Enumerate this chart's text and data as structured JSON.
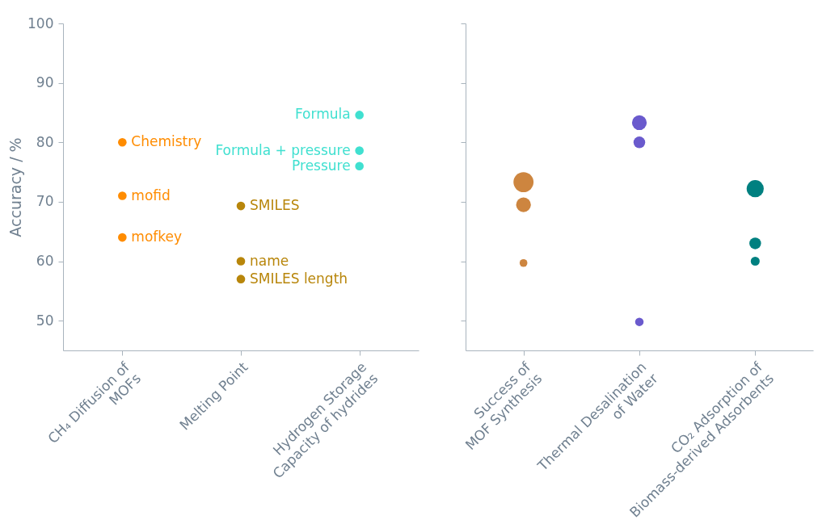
{
  "chart_data": [
    {
      "type": "scatter",
      "ylabel": "Accuracy / %",
      "categories": [
        "CH₄ Diffusion of\nMOFs",
        "Melting Point",
        "Hydrogen Storage\nCapacity of hydrides"
      ],
      "ylim": [
        45,
        100
      ],
      "yticks": [
        50,
        60,
        70,
        80,
        90,
        100
      ],
      "marker": "circle",
      "series": [
        {
          "name": "Chemistry",
          "color": "#ff8c00",
          "x": [
            "CH₄ Diffusion of\nMOFs"
          ],
          "values": [
            80
          ]
        },
        {
          "name": "mofid",
          "color": "#ff8c00",
          "x": [
            "CH₄ Diffusion of\nMOFs"
          ],
          "values": [
            71
          ]
        },
        {
          "name": "mofkey",
          "color": "#ff8c00",
          "x": [
            "CH₄ Diffusion of\nMOFs"
          ],
          "values": [
            64
          ]
        },
        {
          "name": "SMILES",
          "color": "#b8860b",
          "x": [
            "Melting Point"
          ],
          "values": [
            69.3
          ]
        },
        {
          "name": "name",
          "color": "#b8860b",
          "x": [
            "Melting Point"
          ],
          "values": [
            60
          ]
        },
        {
          "name": "SMILES length",
          "color": "#b8860b",
          "x": [
            "Melting Point"
          ],
          "values": [
            57
          ]
        },
        {
          "name": "Formula",
          "color": "#40e0d0",
          "x": [
            "Hydrogen Storage\nCapacity of hydrides"
          ],
          "values": [
            84.6
          ]
        },
        {
          "name": "Formula + pressure",
          "color": "#40e0d0",
          "x": [
            "Hydrogen Storage\nCapacity of hydrides"
          ],
          "values": [
            78.6
          ]
        },
        {
          "name": "Pressure",
          "color": "#40e0d0",
          "x": [
            "Hydrogen Storage\nCapacity of hydrides"
          ],
          "values": [
            76
          ]
        }
      ]
    },
    {
      "type": "bubble",
      "categories": [
        "Success of\nMOF Synthesis",
        "Thermal Desalination\nof Water",
        "CO₂ Adsorption of\nBiomass-derived Adsorbents"
      ],
      "ylim": [
        45,
        100
      ],
      "yticks": [
        50,
        60,
        70,
        80,
        90,
        100
      ],
      "tick_labels": "x",
      "marker": "circle",
      "series": [
        {
          "color": "#cd853f",
          "x": [
            "Success of\nMOF Synthesis",
            "Success of\nMOF Synthesis",
            "Success of\nMOF Synthesis"
          ],
          "values": [
            73.3,
            69.5,
            59.7
          ],
          "sizes": [
            1,
            0.54,
            0.15
          ]
        },
        {
          "color": "#6a5acd",
          "x": [
            "Thermal Desalination\nof Water",
            "Thermal Desalination\nof Water",
            "Thermal Desalination\nof Water"
          ],
          "values": [
            83.3,
            80,
            49.8
          ],
          "sizes": [
            0.54,
            0.34,
            0.18
          ]
        },
        {
          "color": "#008080",
          "x": [
            "CO₂ Adsorption of\nBiomass-derived Adsorbents",
            "CO₂ Adsorption of\nBiomass-derived Adsorbents",
            "CO₂ Adsorption of\nBiomass-derived Adsorbents"
          ],
          "values": [
            72.2,
            63,
            60
          ],
          "sizes": [
            0.73,
            0.34,
            0.2
          ]
        }
      ]
    }
  ]
}
